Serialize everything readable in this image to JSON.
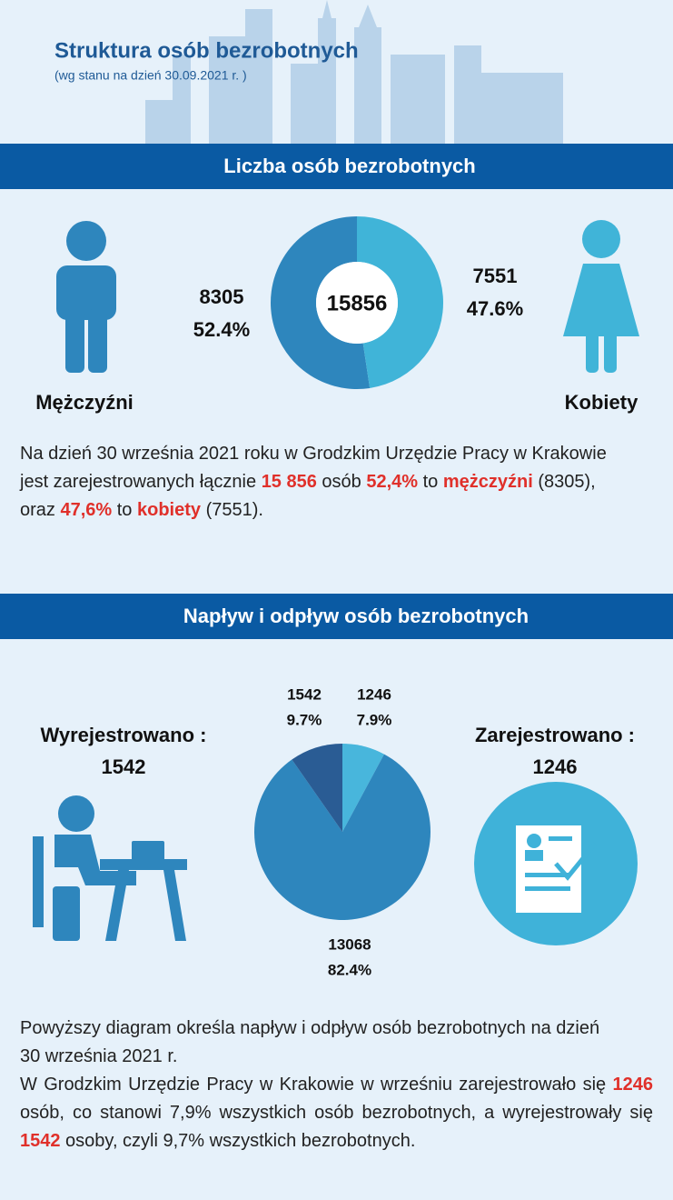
{
  "header": {
    "title": "Struktura osób bezrobotnych",
    "subtitle": "(wg stanu na dzień 30.09.2021 r. )"
  },
  "chart_data": [
    {
      "type": "donut",
      "title": "Liczba osób bezrobotnych",
      "total": 15856,
      "categories": [
        "Mężczyźni",
        "Kobiety"
      ],
      "values": [
        8305,
        7551
      ],
      "percent_labels": [
        "52.4%",
        "47.6%"
      ],
      "colors": [
        "#2e86bd",
        "#40b4d8"
      ]
    },
    {
      "type": "pie",
      "title": "Napływ i odpływ osób bezrobotnych",
      "values": [
        1246,
        13068,
        1542
      ],
      "percent_labels": [
        "7.9%",
        "82.4%",
        "9.7%"
      ],
      "colors": [
        "#48b6dc",
        "#2e86bd",
        "#2a5c94"
      ]
    }
  ],
  "flow": {
    "left_label": "Wyrejestrowano :",
    "left_value": 1542,
    "right_label": "Zarejestrowano :",
    "right_value": 1246
  },
  "paragraph1": [
    {
      "text": "Na dzień 30 września 2021 roku w Grodzkim Urzędzie Pracy w Krakowie jest zarejestrowanych łącznie ",
      "highlight": false
    },
    {
      "text": "15 856",
      "highlight": true
    },
    {
      "text": " osób ",
      "highlight": false
    },
    {
      "text": "52,4%",
      "highlight": true
    },
    {
      "text": " to ",
      "highlight": false
    },
    {
      "text": "mężczyźni",
      "highlight": true
    },
    {
      "text": " (8305), oraz ",
      "highlight": false
    },
    {
      "text": "47,6%",
      "highlight": true
    },
    {
      "text": " to ",
      "highlight": false
    },
    {
      "text": "kobiety",
      "highlight": true
    },
    {
      "text": " (7551).",
      "highlight": false
    }
  ],
  "paragraph2": {
    "intro": "Powyższy diagram określa napływ i odpływ osób bezrobotnych na dzień 30 września 2021 r.",
    "runs": [
      {
        "text": "W Grodzkim Urzędzie Pracy w Krakowie w wrześniu zarejestrowało się ",
        "highlight": false
      },
      {
        "text": "1246",
        "highlight": true
      },
      {
        "text": " osób, co stanowi 7,9% wszystkich osób bezrobotnych, a wyrejestrowały się ",
        "highlight": false
      },
      {
        "text": "1542",
        "highlight": true
      },
      {
        "text": " osoby, czyli 9,7% wszystkich bezrobotnych.",
        "highlight": false
      }
    ]
  }
}
